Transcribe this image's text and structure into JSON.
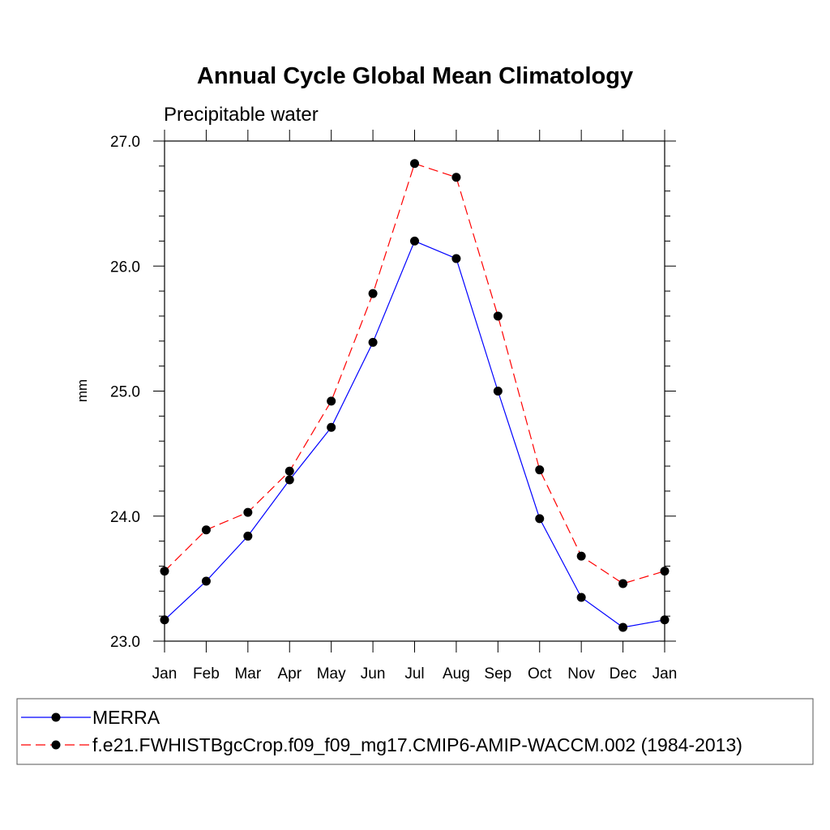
{
  "chart_data": {
    "type": "line",
    "title": "Annual Cycle Global Mean Climatology",
    "subtitle": "Precipitable water",
    "xlabel": "",
    "ylabel": "mm",
    "categories": [
      "Jan",
      "Feb",
      "Mar",
      "Apr",
      "May",
      "Jun",
      "Jul",
      "Aug",
      "Sep",
      "Oct",
      "Nov",
      "Dec",
      "Jan"
    ],
    "ylim": [
      23.0,
      27.0
    ],
    "yticks": [
      "23.0",
      "24.0",
      "25.0",
      "26.0",
      "27.0"
    ],
    "grid": false,
    "legend_position": "bottom",
    "series": [
      {
        "name": "MERRA",
        "color": "#0000ff",
        "dash": "solid",
        "marker": "filled-circle",
        "values": [
          23.17,
          23.48,
          23.84,
          24.29,
          24.71,
          25.39,
          26.2,
          26.06,
          25.0,
          23.98,
          23.35,
          23.11,
          23.17
        ]
      },
      {
        "name": "f.e21.FWHISTBgcCrop.f09_f09_mg17.CMIP6-AMIP-WACCM.002 (1984-2013)",
        "color": "#ff0000",
        "dash": "dashed",
        "marker": "filled-circle",
        "values": [
          23.56,
          23.89,
          24.03,
          24.36,
          24.92,
          25.78,
          26.82,
          26.71,
          25.6,
          24.37,
          23.68,
          23.46,
          23.56
        ]
      }
    ]
  }
}
